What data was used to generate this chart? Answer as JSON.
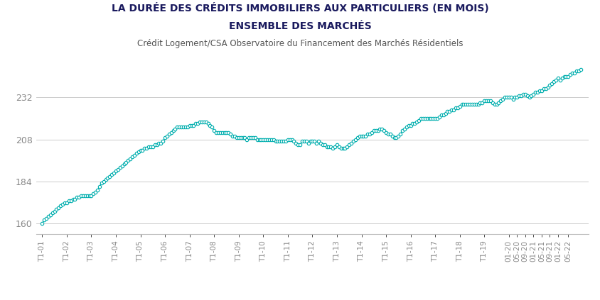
{
  "title_line1": "LA DURÉE DES CRÉDITS IMMOBILIERS AUX PARTICULIERS (EN MOIS)",
  "title_line2": "ENSEMBLE DES MARCHÉS",
  "subtitle": "Crédit Logement/CSA Observatoire du Financement des Marchés Résidentiels",
  "line_color": "#00AEAE",
  "marker_facecolor": "white",
  "yticks": [
    160,
    184,
    208,
    232
  ],
  "ylim": [
    154,
    250
  ],
  "background_color": "#ffffff",
  "grid_color": "#cccccc",
  "values": [
    160,
    162,
    163,
    164,
    165,
    166,
    167,
    168,
    169,
    170,
    171,
    172,
    172,
    173,
    173,
    174,
    174,
    175,
    175,
    176,
    176,
    176,
    176,
    176,
    176,
    177,
    178,
    179,
    181,
    183,
    184,
    185,
    186,
    187,
    188,
    189,
    190,
    191,
    192,
    193,
    194,
    195,
    196,
    197,
    198,
    199,
    200,
    201,
    202,
    202,
    203,
    203,
    204,
    204,
    204,
    205,
    205,
    206,
    206,
    207,
    209,
    210,
    211,
    212,
    213,
    214,
    215,
    215,
    215,
    215,
    215,
    215,
    216,
    216,
    216,
    217,
    217,
    218,
    218,
    218,
    218,
    217,
    216,
    215,
    213,
    212,
    212,
    212,
    212,
    212,
    212,
    212,
    211,
    210,
    210,
    209,
    209,
    209,
    209,
    209,
    208,
    209,
    209,
    209,
    209,
    208,
    208,
    208,
    208,
    208,
    208,
    208,
    208,
    208,
    207,
    207,
    207,
    207,
    207,
    207,
    208,
    208,
    208,
    207,
    206,
    205,
    205,
    207,
    207,
    207,
    206,
    207,
    207,
    207,
    206,
    207,
    206,
    205,
    205,
    204,
    204,
    204,
    203,
    204,
    205,
    204,
    203,
    203,
    203,
    204,
    205,
    206,
    207,
    208,
    209,
    210,
    210,
    210,
    210,
    211,
    211,
    212,
    213,
    213,
    213,
    214,
    214,
    213,
    212,
    211,
    211,
    210,
    209,
    209,
    210,
    211,
    213,
    214,
    215,
    216,
    216,
    217,
    217,
    218,
    219,
    220,
    220,
    220,
    220,
    220,
    220,
    220,
    220,
    220,
    221,
    222,
    222,
    223,
    224,
    224,
    225,
    225,
    226,
    226,
    227,
    228,
    228,
    228,
    228,
    228,
    228,
    228,
    228,
    228,
    229,
    229,
    230,
    230,
    230,
    230,
    229,
    228,
    228,
    229,
    230,
    231,
    232,
    232,
    232,
    232,
    231,
    232,
    232,
    233,
    233,
    234,
    234,
    233,
    232,
    233,
    234,
    235,
    235,
    236,
    236,
    237,
    237,
    238,
    239,
    240,
    241,
    242,
    243,
    242,
    243,
    244,
    244,
    244,
    245,
    246,
    246,
    247,
    247,
    248
  ],
  "xtick_labels": [
    "T1-01",
    "T1-02",
    "T1-03",
    "T1-04",
    "T1-05",
    "T1-06",
    "T1-07",
    "T1-08",
    "T1-09",
    "T1-10",
    "T1-11",
    "T1-12",
    "T1-13",
    "T1-14",
    "T1-15",
    "T1-16",
    "T1-17",
    "T1-18",
    "T1-19",
    "01-20",
    "05-20",
    "09-20",
    "01-21",
    "05-21",
    "09-21",
    "01-22",
    "05-22"
  ],
  "xtick_indices": [
    0,
    12,
    24,
    36,
    48,
    60,
    72,
    84,
    96,
    108,
    120,
    132,
    144,
    156,
    168,
    180,
    192,
    204,
    216,
    228,
    232,
    236,
    240,
    244,
    248,
    252,
    257
  ],
  "title_color": "#1a1a5e",
  "subtitle_color": "#555555",
  "tick_color": "#888888"
}
